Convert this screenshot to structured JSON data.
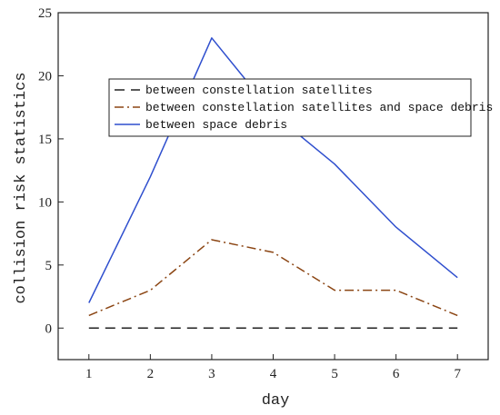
{
  "chart_data": {
    "type": "line",
    "xlabel": "day",
    "ylabel": "collision risk statistics",
    "x": [
      1,
      2,
      3,
      4,
      5,
      6,
      7
    ],
    "xlim": [
      0.5,
      7.5
    ],
    "ylim": [
      -2.5,
      25
    ],
    "yticks": [
      0,
      5,
      10,
      15,
      20,
      25
    ],
    "xticks": [
      1,
      2,
      3,
      4,
      5,
      6,
      7
    ],
    "grid": false,
    "legend_position": "top-center",
    "series": [
      {
        "name": "between constellation satellites",
        "values": [
          0,
          0,
          0,
          0,
          0,
          0,
          0
        ],
        "color": "#222222",
        "line_style": "dashed"
      },
      {
        "name": "between constellation satellites and space debris",
        "values": [
          1,
          3,
          7,
          6,
          3,
          3,
          1
        ],
        "color": "#8b4513",
        "line_style": "dash-dot"
      },
      {
        "name": "between space debris",
        "values": [
          2,
          12,
          23,
          17,
          13,
          8,
          4
        ],
        "color": "#2f4fce",
        "line_style": "solid"
      }
    ]
  }
}
